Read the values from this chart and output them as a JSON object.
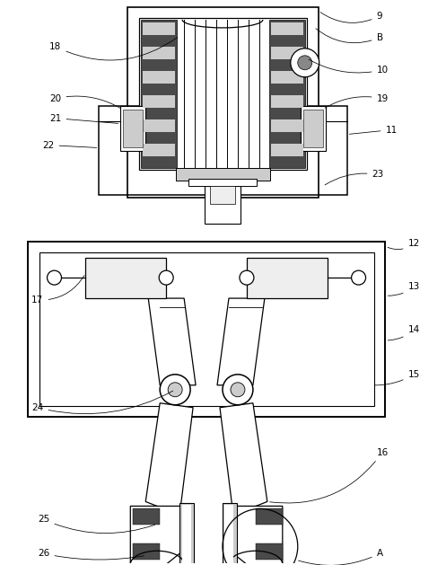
{
  "bg_color": "#ffffff",
  "lc": "#000000",
  "fig_w": 4.97,
  "fig_h": 6.29,
  "dpi": 100,
  "gray_dark": "#4a4a4a",
  "gray_mid": "#888888",
  "gray_light": "#cccccc",
  "gray_vlight": "#eeeeee"
}
